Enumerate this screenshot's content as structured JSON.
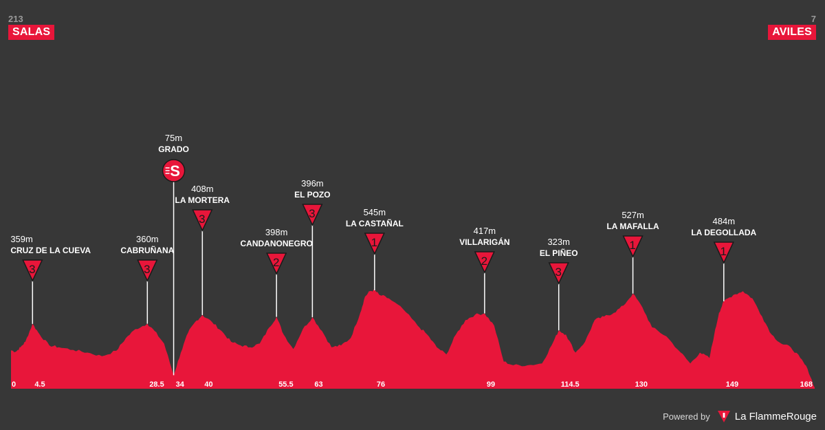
{
  "start": {
    "altitude": "213",
    "name": "SALAS"
  },
  "finish": {
    "altitude": "7",
    "name": "AVILES"
  },
  "footer": {
    "powered_by": "Powered by",
    "brand": "La FlammeRouge",
    "logo_icon": "flamme-rouge-logo-icon"
  },
  "colors": {
    "background": "#373737",
    "profile": "#e8163a",
    "label": "#ffffff"
  },
  "chart_data": {
    "type": "area",
    "title": "",
    "xlabel": "",
    "ylabel": "",
    "x_range": [
      0,
      168
    ],
    "distance_ticks": [
      "0",
      "4.5",
      "28.5",
      "34",
      "40",
      "55.5",
      "63",
      "76",
      "99",
      "114.5",
      "130",
      "149",
      "168"
    ],
    "profile": {
      "x": [
        0,
        1,
        2,
        3,
        4.5,
        6,
        8,
        10,
        13,
        16,
        19,
        22,
        24,
        26,
        28.5,
        30,
        32,
        34,
        35.5,
        37,
        38.5,
        40,
        42,
        44,
        46,
        48,
        50,
        52,
        54,
        55.5,
        57,
        59,
        61,
        63,
        65,
        67,
        69,
        71,
        73,
        74,
        75,
        76,
        77,
        79,
        82,
        85,
        87,
        89,
        91,
        93,
        95,
        97,
        99,
        101,
        103,
        105,
        108,
        111,
        113,
        114.5,
        116,
        118,
        120,
        122,
        124,
        126,
        128,
        130,
        132,
        134,
        137,
        140,
        142,
        144,
        146,
        147,
        148,
        149,
        151,
        153,
        155,
        157,
        159,
        161,
        163,
        165,
        166.5,
        168
      ],
      "y": [
        213,
        205,
        230,
        260,
        359,
        300,
        240,
        230,
        215,
        200,
        180,
        210,
        280,
        330,
        360,
        320,
        250,
        75,
        200,
        310,
        370,
        408,
        370,
        320,
        260,
        240,
        230,
        250,
        340,
        398,
        300,
        220,
        330,
        396,
        320,
        230,
        240,
        280,
        420,
        510,
        540,
        545,
        520,
        500,
        440,
        350,
        300,
        230,
        190,
        300,
        380,
        410,
        417,
        350,
        150,
        130,
        130,
        140,
        240,
        323,
        300,
        200,
        260,
        380,
        400,
        420,
        460,
        527,
        450,
        340,
        290,
        200,
        140,
        200,
        170,
        300,
        420,
        484,
        520,
        540,
        500,
        400,
        300,
        250,
        230,
        170,
        110,
        7
      ]
    },
    "points": [
      {
        "name": "CRUZ DE LA CUEVA",
        "km": 4.5,
        "altitude": 359,
        "altitude_label": "359m",
        "marker": "3",
        "type": "climb"
      },
      {
        "name": "CABRUÑANA",
        "km": 28.5,
        "altitude": 360,
        "altitude_label": "360m",
        "marker": "3",
        "type": "climb"
      },
      {
        "name": "GRADO",
        "km": 34,
        "altitude": 75,
        "altitude_label": "75m",
        "marker": "S",
        "type": "sprint"
      },
      {
        "name": "LA MORTERA",
        "km": 40,
        "altitude": 408,
        "altitude_label": "408m",
        "marker": "3",
        "type": "climb"
      },
      {
        "name": "CANDANONEGRO",
        "km": 55.5,
        "altitude": 398,
        "altitude_label": "398m",
        "marker": "2",
        "type": "climb"
      },
      {
        "name": "EL POZO",
        "km": 63,
        "altitude": 396,
        "altitude_label": "396m",
        "marker": "3",
        "type": "climb"
      },
      {
        "name": "LA CASTAÑAL",
        "km": 76,
        "altitude": 545,
        "altitude_label": "545m",
        "marker": "1",
        "type": "climb"
      },
      {
        "name": "VILLARIGÁN",
        "km": 99,
        "altitude": 417,
        "altitude_label": "417m",
        "marker": "2",
        "type": "climb"
      },
      {
        "name": "EL PIÑEO",
        "km": 114.5,
        "altitude": 323,
        "altitude_label": "323m",
        "marker": "3",
        "type": "climb"
      },
      {
        "name": "LA MAFALLA",
        "km": 130,
        "altitude": 527,
        "altitude_label": "527m",
        "marker": "1",
        "type": "climb"
      },
      {
        "name": "LA DEGOLLADA",
        "km": 149,
        "altitude": 484,
        "altitude_label": "484m",
        "marker": "1",
        "type": "climb"
      }
    ]
  }
}
